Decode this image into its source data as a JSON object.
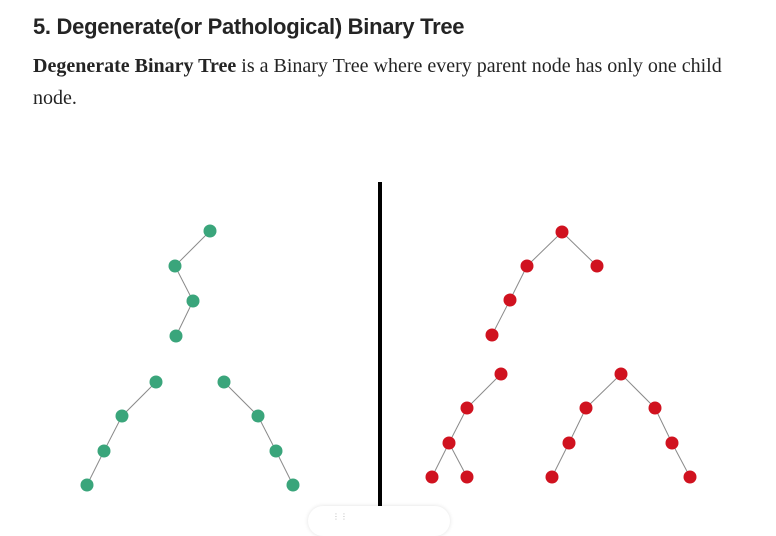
{
  "heading": "5. Degenerate(or Pathological) Binary Tree",
  "paragraph": {
    "bold": "Degenerate Binary Tree",
    "rest": " is a Binary Tree where every parent node has only one child node."
  },
  "colors": {
    "text": "#242424",
    "green_node": "#3aa57b",
    "red_node": "#d0121f",
    "edge": "#8a8a8a",
    "divider": "#000000"
  },
  "figure": {
    "left_panel_label": "degenerate-trees-green",
    "right_panel_label": "non-degenerate-trees-red"
  },
  "footer": {
    "pill_icon": "dots-icon"
  }
}
